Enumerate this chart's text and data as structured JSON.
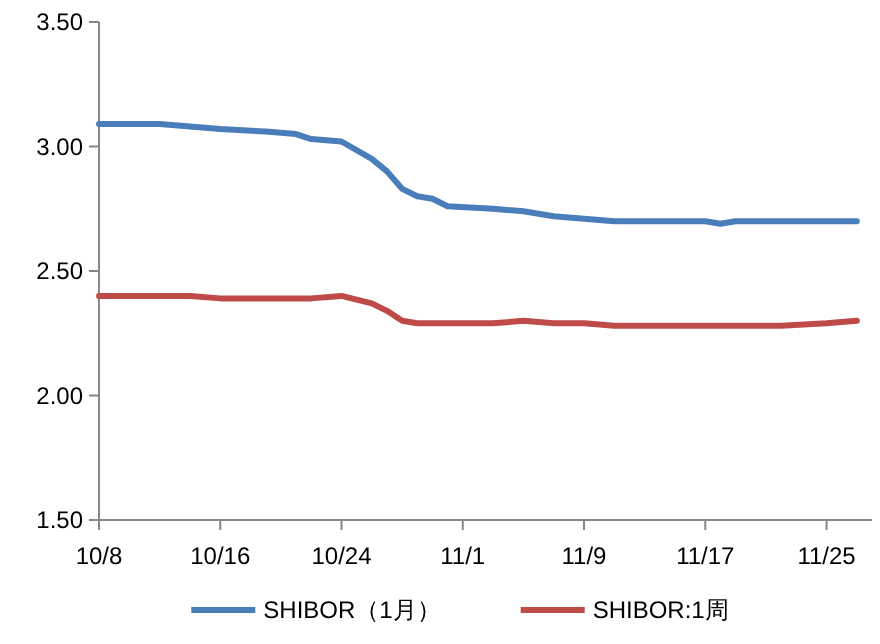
{
  "chart_data": {
    "type": "line",
    "x": [
      "--10-08",
      "--10-12",
      "--10-14",
      "--10-16",
      "--10-19",
      "--10-21",
      "--10-22",
      "--10-24",
      "--10-26",
      "--10-27",
      "--10-28",
      "--10-29",
      "--10-30",
      "--10-31",
      "--11-03",
      "--11-05",
      "--11-07",
      "--11-09",
      "--11-11",
      "--11-14",
      "--11-17",
      "--11-18",
      "--11-19",
      "--11-22",
      "--11-25",
      "--11-27"
    ],
    "series": [
      {
        "name": "SHIBOR（1月）",
        "color": "#4a7ebb",
        "values": [
          3.09,
          3.09,
          3.08,
          3.07,
          3.06,
          3.05,
          3.03,
          3.02,
          2.95,
          2.9,
          2.83,
          2.8,
          2.79,
          2.76,
          2.75,
          2.74,
          2.72,
          2.71,
          2.7,
          2.7,
          2.7,
          2.69,
          2.7,
          2.7,
          2.7,
          2.7
        ]
      },
      {
        "name": "SHIBOR:1周",
        "color": "#be4b48",
        "values": [
          2.4,
          2.4,
          2.4,
          2.39,
          2.39,
          2.39,
          2.39,
          2.4,
          2.37,
          2.34,
          2.3,
          2.29,
          2.29,
          2.29,
          2.29,
          2.3,
          2.29,
          2.29,
          2.28,
          2.28,
          2.28,
          2.28,
          2.28,
          2.28,
          2.29,
          2.3
        ]
      }
    ],
    "xlim": [
      "--10-08",
      "--11-28"
    ],
    "xticks": [
      {
        "value": "--10-08",
        "label": "10/8"
      },
      {
        "value": "--10-16",
        "label": "10/16"
      },
      {
        "value": "--10-24",
        "label": "10/24"
      },
      {
        "value": "--11-01",
        "label": "11/1"
      },
      {
        "value": "--11-09",
        "label": "11/9"
      },
      {
        "value": "--11-17",
        "label": "11/17"
      },
      {
        "value": "--11-25",
        "label": "11/25"
      }
    ],
    "ylim": [
      1.5,
      3.5
    ],
    "yticks": [
      {
        "value": 1.5,
        "label": "1.50"
      },
      {
        "value": 2.0,
        "label": "2.00"
      },
      {
        "value": 2.5,
        "label": "2.50"
      },
      {
        "value": 3.0,
        "label": "3.00"
      },
      {
        "value": 3.5,
        "label": "3.50"
      }
    ],
    "legend": "bottom"
  }
}
